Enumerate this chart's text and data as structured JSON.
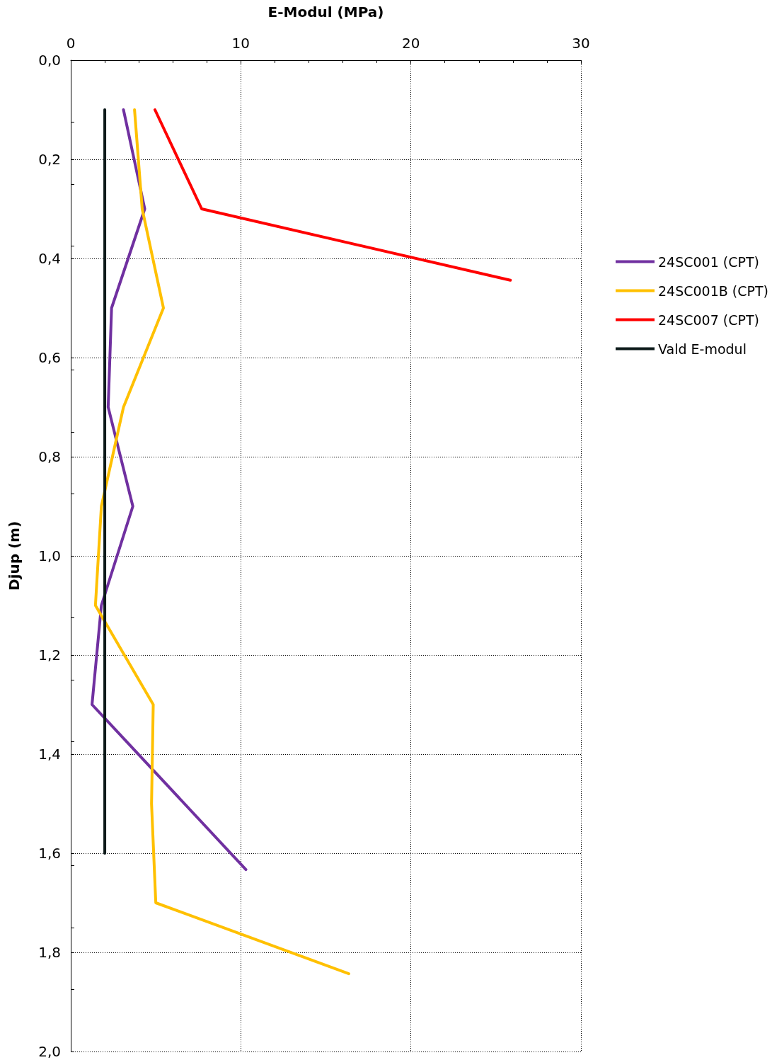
{
  "chart_data": {
    "type": "line",
    "xlabel": "E-Modul (MPa)",
    "ylabel": "Djup (m)",
    "xlim": [
      0,
      30
    ],
    "xticks": [
      0,
      10,
      20,
      30
    ],
    "ylim": [
      2.0,
      0.0
    ],
    "yticks": [
      {
        "value": 0,
        "label": "0,0"
      },
      {
        "value": 0.2,
        "label": "0,2"
      },
      {
        "value": 0.4,
        "label": "0,4"
      },
      {
        "value": 0.6,
        "label": "0,6"
      },
      {
        "value": 0.8,
        "label": "0,8"
      },
      {
        "value": 1.0,
        "label": "1,0"
      },
      {
        "value": 1.2,
        "label": "1,2"
      },
      {
        "value": 1.4,
        "label": "1,4"
      },
      {
        "value": 1.6,
        "label": "1,6"
      },
      {
        "value": 1.8,
        "label": "1,8"
      },
      {
        "value": 2.0,
        "label": "2,0"
      }
    ],
    "grid": true,
    "legend": "right",
    "marker": "none",
    "line_style": "solid",
    "series": [
      {
        "name": "24SC001 (CPT)",
        "color": "#7030a0",
        "x": [
          3.1,
          4.35,
          2.4,
          2.2,
          3.65,
          1.8,
          1.25,
          10.3
        ],
        "values": [
          0.1,
          0.3,
          0.5,
          0.7,
          0.9,
          1.1,
          1.3,
          1.633
        ]
      },
      {
        "name": "24SC001B (CPT)",
        "color": "#ffc000",
        "x": [
          3.75,
          4.2,
          5.45,
          3.1,
          1.8,
          1.45,
          4.85,
          4.75,
          5.0,
          16.35
        ],
        "values": [
          0.1,
          0.3,
          0.5,
          0.7,
          0.9,
          1.1,
          1.3,
          1.5,
          1.7,
          1.843
        ]
      },
      {
        "name": "24SC007 (CPT)",
        "color": "#ff0000",
        "x": [
          4.95,
          7.7,
          25.85
        ],
        "values": [
          0.1,
          0.3,
          0.444
        ]
      },
      {
        "name": "Vald E-modul",
        "color": "#0d1a1a",
        "x": [
          2.0,
          2.0
        ],
        "values": [
          0.1,
          1.6
        ]
      }
    ]
  }
}
